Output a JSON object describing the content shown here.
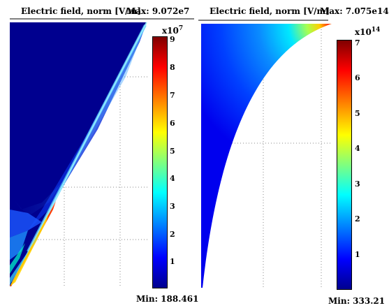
{
  "left_panel": {
    "title": "Electric field, norm [V/m]",
    "max_label": "Max: 9.072e7",
    "min_label": "Min: 188.461",
    "colorbar_exponent_base": "x10",
    "colorbar_exponent_power": "7",
    "colorbar_ticks": [
      "9",
      "8",
      "7",
      "6",
      "5",
      "4",
      "3",
      "2",
      "1"
    ]
  },
  "right_panel": {
    "title": "Electric field, norm [V/m]",
    "max_label": "Max: 7.075e14",
    "min_label": "Min: 333.21",
    "colorbar_exponent_base": "x10",
    "colorbar_exponent_power": "14",
    "colorbar_ticks": [
      "7",
      "6",
      "5",
      "4",
      "3",
      "2",
      "1"
    ]
  }
}
